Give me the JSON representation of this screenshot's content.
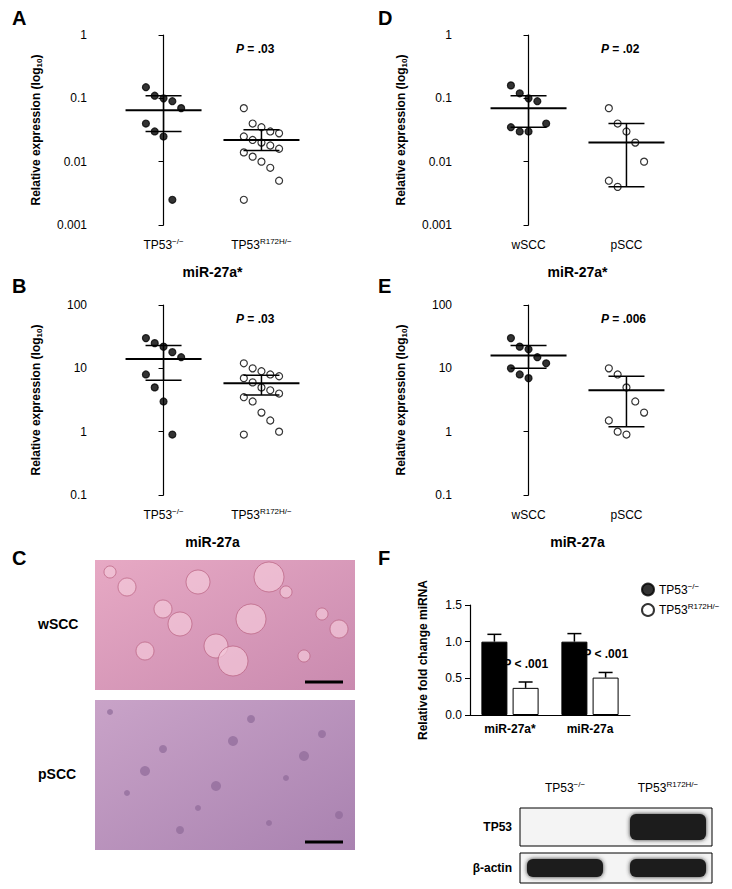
{
  "chart_data": [
    {
      "panel": "A",
      "type": "scatter",
      "title": "miR-27a*",
      "y_label": "Relative expression (log10)",
      "log": "y",
      "ylim": [
        0.001,
        1
      ],
      "yticks": [
        0.001,
        0.01,
        0.1,
        1
      ],
      "annotation": "P = .03",
      "series": [
        {
          "name": "TP53−/−",
          "marker": "filled",
          "color": "#000000",
          "values": [
            0.15,
            0.11,
            0.1,
            0.09,
            0.07,
            0.04,
            0.03,
            0.025,
            0.0025
          ],
          "mean": 0.065,
          "error": [
            0.03,
            0.11
          ]
        },
        {
          "name": "TP53R172H/−",
          "marker": "open",
          "color": "#000000",
          "values": [
            0.07,
            0.04,
            0.035,
            0.03,
            0.028,
            0.025,
            0.022,
            0.02,
            0.018,
            0.016,
            0.014,
            0.012,
            0.01,
            0.008,
            0.005,
            0.0025
          ],
          "mean": 0.022,
          "error": [
            0.015,
            0.032
          ]
        }
      ]
    },
    {
      "panel": "B",
      "type": "scatter",
      "title": "miR-27a",
      "y_label": "Relative expression (log10)",
      "log": "y",
      "ylim": [
        0.1,
        100
      ],
      "yticks": [
        0.1,
        1,
        10,
        100
      ],
      "annotation": "P = .03",
      "series": [
        {
          "name": "TP53−/−",
          "marker": "filled",
          "color": "#000000",
          "values": [
            30,
            25,
            22,
            18,
            15,
            8,
            5,
            3,
            0.9
          ],
          "mean": 14,
          "error": [
            6.5,
            23
          ]
        },
        {
          "name": "TP53R172H/−",
          "marker": "open",
          "color": "#000000",
          "values": [
            12,
            10,
            9,
            8,
            7.5,
            7,
            6,
            5,
            4.5,
            4,
            3.5,
            3,
            2,
            1.5,
            1,
            0.9
          ],
          "mean": 5.8,
          "error": [
            3.8,
            7.8
          ]
        }
      ]
    },
    {
      "panel": "D",
      "type": "scatter",
      "title": "miR-27a*",
      "y_label": "Relative expression (log10)",
      "log": "y",
      "ylim": [
        0.001,
        1
      ],
      "yticks": [
        0.001,
        0.01,
        0.1,
        1
      ],
      "annotation": "P = .02",
      "series": [
        {
          "name": "wSCC",
          "marker": "filled",
          "color": "#000000",
          "values": [
            0.16,
            0.12,
            0.1,
            0.09,
            0.04,
            0.035,
            0.03,
            0.03
          ],
          "mean": 0.07,
          "error": [
            0.035,
            0.11
          ]
        },
        {
          "name": "pSCC",
          "marker": "open",
          "color": "#000000",
          "values": [
            0.07,
            0.04,
            0.03,
            0.02,
            0.01,
            0.005,
            0.004
          ],
          "mean": 0.02,
          "error": [
            0.004,
            0.04
          ]
        }
      ]
    },
    {
      "panel": "E",
      "type": "scatter",
      "title": "miR-27a",
      "y_label": "Relative expression (log10)",
      "log": "y",
      "ylim": [
        0.1,
        100
      ],
      "yticks": [
        0.1,
        1,
        10,
        100
      ],
      "annotation": "P = .006",
      "series": [
        {
          "name": "wSCC",
          "marker": "filled",
          "color": "#000000",
          "values": [
            30,
            22,
            20,
            15,
            12,
            10,
            8,
            7
          ],
          "mean": 16,
          "error": [
            10,
            23
          ]
        },
        {
          "name": "pSCC",
          "marker": "open",
          "color": "#000000",
          "values": [
            10,
            8,
            5,
            3,
            2,
            1.5,
            1,
            0.9
          ],
          "mean": 4.5,
          "error": [
            1.2,
            7.5
          ]
        }
      ]
    },
    {
      "panel": "F",
      "type": "bar",
      "y_label": "Relative fold change miRNA",
      "categories": [
        "miR-27a*",
        "miR-27a"
      ],
      "ylim": [
        0,
        1.5
      ],
      "yticks": [
        {
          "value": 0,
          "label": "0.0"
        },
        {
          "value": 0.5,
          "label": "0.5"
        },
        {
          "value": 1,
          "label": "1.0"
        },
        {
          "value": 1.5,
          "label": "1.5"
        }
      ],
      "legend": "top-right",
      "grid": false,
      "series": [
        {
          "name": "TP53−/−",
          "color": "#000000",
          "values": [
            1.0,
            1.0
          ],
          "error": [
            0.1,
            0.11
          ]
        },
        {
          "name": "TP53R172H/−",
          "color": "#ffffff",
          "values": [
            0.37,
            0.51
          ],
          "error": [
            0.08,
            0.07
          ],
          "annotations": [
            "P < .001",
            "P < .001"
          ]
        }
      ]
    }
  ],
  "histology": {
    "panel": "C",
    "labels": [
      "wSCC",
      "pSCC"
    ]
  },
  "blot": {
    "columns": [
      "TP53−/−",
      "TP53R172H/−"
    ],
    "rows": [
      "TP53",
      "β-actin"
    ],
    "bands": [
      [
        false,
        true
      ],
      [
        true,
        true
      ]
    ]
  }
}
